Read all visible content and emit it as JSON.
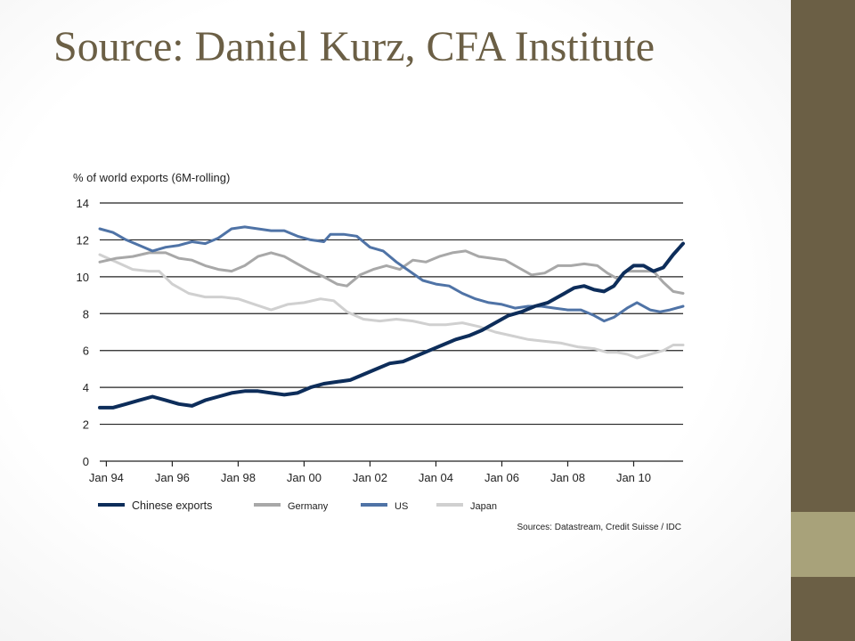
{
  "slide": {
    "title": "Source: Daniel Kurz, CFA Institute",
    "colors": {
      "title": "#6b5f45",
      "sidebar": "#6b5f45",
      "sidebar_accent": "#a8a27a"
    }
  },
  "chart_data": {
    "type": "line",
    "ylabel": "% of world exports (6M-rolling)",
    "source": "Sources: Datastream, Credit Suisse / IDC",
    "ylim": [
      0,
      14
    ],
    "xlim": [
      1993.8,
      2011.5
    ],
    "yticks": [
      0,
      2,
      4,
      6,
      8,
      10,
      12,
      14
    ],
    "xticks": [
      {
        "label": "Jan 94",
        "value": 1994
      },
      {
        "label": "Jan 96",
        "value": 1996
      },
      {
        "label": "Jan 98",
        "value": 1998
      },
      {
        "label": "Jan 00",
        "value": 2000
      },
      {
        "label": "Jan 02",
        "value": 2002
      },
      {
        "label": "Jan 04",
        "value": 2004
      },
      {
        "label": "Jan 06",
        "value": 2006
      },
      {
        "label": "Jan 08",
        "value": 2008
      },
      {
        "label": "Jan 10",
        "value": 2010
      }
    ],
    "grid": "horizontal",
    "legend_position": "bottom",
    "series": [
      {
        "name": "Japan",
        "color": "#d0d0d0",
        "width": 3,
        "points": [
          [
            1993.8,
            11.2
          ],
          [
            1994.3,
            10.8
          ],
          [
            1994.8,
            10.4
          ],
          [
            1995.3,
            10.3
          ],
          [
            1995.6,
            10.3
          ],
          [
            1996,
            9.6
          ],
          [
            1996.5,
            9.1
          ],
          [
            1997,
            8.9
          ],
          [
            1997.5,
            8.9
          ],
          [
            1998,
            8.8
          ],
          [
            1998.5,
            8.5
          ],
          [
            1999,
            8.2
          ],
          [
            1999.5,
            8.5
          ],
          [
            2000,
            8.6
          ],
          [
            2000.5,
            8.8
          ],
          [
            2000.9,
            8.7
          ],
          [
            2001.3,
            8.1
          ],
          [
            2001.8,
            7.7
          ],
          [
            2002.3,
            7.6
          ],
          [
            2002.8,
            7.7
          ],
          [
            2003.3,
            7.6
          ],
          [
            2003.8,
            7.4
          ],
          [
            2004.3,
            7.4
          ],
          [
            2004.8,
            7.5
          ],
          [
            2005.3,
            7.3
          ],
          [
            2005.8,
            7.0
          ],
          [
            2006.3,
            6.8
          ],
          [
            2006.8,
            6.6
          ],
          [
            2007.3,
            6.5
          ],
          [
            2007.8,
            6.4
          ],
          [
            2008.3,
            6.2
          ],
          [
            2008.8,
            6.1
          ],
          [
            2009.2,
            5.9
          ],
          [
            2009.5,
            5.9
          ],
          [
            2009.8,
            5.8
          ],
          [
            2010.1,
            5.6
          ],
          [
            2010.5,
            5.8
          ],
          [
            2010.9,
            6.0
          ],
          [
            2011.2,
            6.3
          ],
          [
            2011.5,
            6.3
          ]
        ]
      },
      {
        "name": "Germany",
        "color": "#a8a8a8",
        "width": 3,
        "points": [
          [
            1993.8,
            10.8
          ],
          [
            1994.3,
            11.0
          ],
          [
            1994.8,
            11.1
          ],
          [
            1995.3,
            11.3
          ],
          [
            1995.8,
            11.3
          ],
          [
            1996.2,
            11.0
          ],
          [
            1996.6,
            10.9
          ],
          [
            1997,
            10.6
          ],
          [
            1997.4,
            10.4
          ],
          [
            1997.8,
            10.3
          ],
          [
            1998.2,
            10.6
          ],
          [
            1998.6,
            11.1
          ],
          [
            1999,
            11.3
          ],
          [
            1999.4,
            11.1
          ],
          [
            1999.8,
            10.7
          ],
          [
            2000.2,
            10.3
          ],
          [
            2000.6,
            10.0
          ],
          [
            2001,
            9.6
          ],
          [
            2001.3,
            9.5
          ],
          [
            2001.7,
            10.1
          ],
          [
            2002.1,
            10.4
          ],
          [
            2002.5,
            10.6
          ],
          [
            2002.9,
            10.4
          ],
          [
            2003.3,
            10.9
          ],
          [
            2003.7,
            10.8
          ],
          [
            2004.1,
            11.1
          ],
          [
            2004.5,
            11.3
          ],
          [
            2004.9,
            11.4
          ],
          [
            2005.3,
            11.1
          ],
          [
            2005.7,
            11.0
          ],
          [
            2006.1,
            10.9
          ],
          [
            2006.5,
            10.5
          ],
          [
            2006.9,
            10.1
          ],
          [
            2007.3,
            10.2
          ],
          [
            2007.7,
            10.6
          ],
          [
            2008.1,
            10.6
          ],
          [
            2008.5,
            10.7
          ],
          [
            2008.9,
            10.6
          ],
          [
            2009.2,
            10.2
          ],
          [
            2009.5,
            9.9
          ],
          [
            2009.8,
            10.3
          ],
          [
            2010.2,
            10.3
          ],
          [
            2010.6,
            10.3
          ],
          [
            2010.9,
            9.7
          ],
          [
            2011.2,
            9.2
          ],
          [
            2011.5,
            9.1
          ]
        ]
      },
      {
        "name": "US",
        "color": "#4f73a6",
        "width": 3,
        "points": [
          [
            1993.8,
            12.6
          ],
          [
            1994.2,
            12.4
          ],
          [
            1994.6,
            12.0
          ],
          [
            1995,
            11.7
          ],
          [
            1995.4,
            11.4
          ],
          [
            1995.8,
            11.6
          ],
          [
            1996.2,
            11.7
          ],
          [
            1996.6,
            11.9
          ],
          [
            1997,
            11.8
          ],
          [
            1997.4,
            12.1
          ],
          [
            1997.8,
            12.6
          ],
          [
            1998.2,
            12.7
          ],
          [
            1998.6,
            12.6
          ],
          [
            1999,
            12.5
          ],
          [
            1999.4,
            12.5
          ],
          [
            1999.8,
            12.2
          ],
          [
            2000.2,
            12.0
          ],
          [
            2000.6,
            11.9
          ],
          [
            2000.8,
            12.3
          ],
          [
            2001.2,
            12.3
          ],
          [
            2001.6,
            12.2
          ],
          [
            2002,
            11.6
          ],
          [
            2002.4,
            11.4
          ],
          [
            2002.8,
            10.8
          ],
          [
            2003.2,
            10.3
          ],
          [
            2003.6,
            9.8
          ],
          [
            2004,
            9.6
          ],
          [
            2004.4,
            9.5
          ],
          [
            2004.8,
            9.1
          ],
          [
            2005.2,
            8.8
          ],
          [
            2005.6,
            8.6
          ],
          [
            2006,
            8.5
          ],
          [
            2006.4,
            8.3
          ],
          [
            2006.8,
            8.4
          ],
          [
            2007.2,
            8.4
          ],
          [
            2007.6,
            8.3
          ],
          [
            2008,
            8.2
          ],
          [
            2008.4,
            8.2
          ],
          [
            2008.8,
            7.9
          ],
          [
            2009.1,
            7.6
          ],
          [
            2009.4,
            7.8
          ],
          [
            2009.8,
            8.3
          ],
          [
            2010.1,
            8.6
          ],
          [
            2010.5,
            8.2
          ],
          [
            2010.8,
            8.1
          ],
          [
            2011.1,
            8.2
          ],
          [
            2011.5,
            8.4
          ]
        ]
      },
      {
        "name": "Chinese exports",
        "color": "#0d2d5a",
        "width": 4,
        "points": [
          [
            1993.8,
            2.9
          ],
          [
            1994.2,
            2.9
          ],
          [
            1994.6,
            3.1
          ],
          [
            1995,
            3.3
          ],
          [
            1995.4,
            3.5
          ],
          [
            1995.8,
            3.3
          ],
          [
            1996.2,
            3.1
          ],
          [
            1996.6,
            3.0
          ],
          [
            1997,
            3.3
          ],
          [
            1997.4,
            3.5
          ],
          [
            1997.8,
            3.7
          ],
          [
            1998.2,
            3.8
          ],
          [
            1998.6,
            3.8
          ],
          [
            1999,
            3.7
          ],
          [
            1999.4,
            3.6
          ],
          [
            1999.8,
            3.7
          ],
          [
            2000.2,
            4.0
          ],
          [
            2000.6,
            4.2
          ],
          [
            2001,
            4.3
          ],
          [
            2001.4,
            4.4
          ],
          [
            2001.8,
            4.7
          ],
          [
            2002.2,
            5.0
          ],
          [
            2002.6,
            5.3
          ],
          [
            2003,
            5.4
          ],
          [
            2003.4,
            5.7
          ],
          [
            2003.8,
            6.0
          ],
          [
            2004.2,
            6.3
          ],
          [
            2004.6,
            6.6
          ],
          [
            2005,
            6.8
          ],
          [
            2005.4,
            7.1
          ],
          [
            2005.8,
            7.5
          ],
          [
            2006.2,
            7.9
          ],
          [
            2006.6,
            8.1
          ],
          [
            2007,
            8.4
          ],
          [
            2007.4,
            8.6
          ],
          [
            2007.8,
            9.0
          ],
          [
            2008.2,
            9.4
          ],
          [
            2008.5,
            9.5
          ],
          [
            2008.8,
            9.3
          ],
          [
            2009.1,
            9.2
          ],
          [
            2009.4,
            9.5
          ],
          [
            2009.7,
            10.2
          ],
          [
            2010,
            10.6
          ],
          [
            2010.3,
            10.6
          ],
          [
            2010.6,
            10.3
          ],
          [
            2010.9,
            10.5
          ],
          [
            2011.2,
            11.2
          ],
          [
            2011.5,
            11.8
          ]
        ]
      }
    ],
    "legend": [
      {
        "name": "Chinese exports",
        "color": "#0d2d5a",
        "size": "normal"
      },
      {
        "name": "Germany",
        "color": "#a8a8a8",
        "size": "small"
      },
      {
        "name": "US",
        "color": "#4f73a6",
        "size": "small"
      },
      {
        "name": "Japan",
        "color": "#d0d0d0",
        "size": "small"
      }
    ]
  }
}
